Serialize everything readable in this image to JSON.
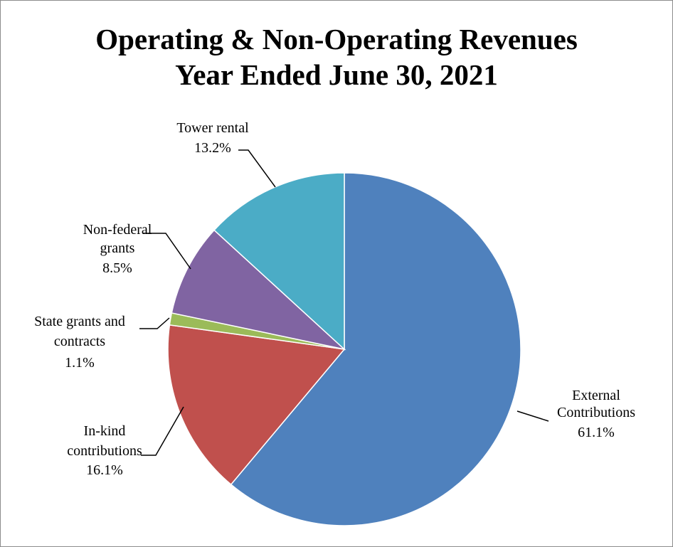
{
  "chart_data": {
    "type": "pie",
    "title": [
      "Operating & Non-Operating Revenues",
      "Year Ended June 30, 2021"
    ],
    "slices": [
      {
        "label": [
          "External",
          "Contributions"
        ],
        "percent": "61.1%",
        "value": 61.1,
        "color": "#4f81bd"
      },
      {
        "label": [
          "In-kind",
          "contributions"
        ],
        "percent": "16.1%",
        "value": 16.1,
        "color": "#c0504d"
      },
      {
        "label": [
          "State grants and",
          "contracts"
        ],
        "percent": "1.1%",
        "value": 1.1,
        "color": "#9bbb59"
      },
      {
        "label": [
          "Non-federal",
          "grants"
        ],
        "percent": "8.5%",
        "value": 8.5,
        "color": "#8064a2"
      },
      {
        "label": [
          "Tower rental"
        ],
        "percent": "13.2%",
        "value": 13.2,
        "color": "#4bacc6"
      }
    ]
  }
}
